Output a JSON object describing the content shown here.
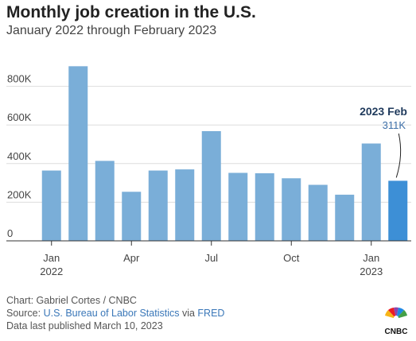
{
  "header": {
    "title": "Monthly job creation in the U.S.",
    "subtitle": "January 2022 through February 2023"
  },
  "chart_data": {
    "type": "bar",
    "categories": [
      "2022-01",
      "2022-02",
      "2022-03",
      "2022-04",
      "2022-05",
      "2022-06",
      "2022-07",
      "2022-08",
      "2022-09",
      "2022-10",
      "2022-11",
      "2022-12",
      "2023-01",
      "2023-02"
    ],
    "values": [
      364000,
      904000,
      414000,
      254000,
      364000,
      370000,
      568000,
      352000,
      350000,
      324000,
      290000,
      239000,
      504000,
      311000
    ],
    "ylim": [
      0,
      1000000
    ],
    "y_ticks": [
      {
        "value": 0,
        "label": "0"
      },
      {
        "value": 200000,
        "label": "200K"
      },
      {
        "value": 400000,
        "label": "400K"
      },
      {
        "value": 600000,
        "label": "600K"
      },
      {
        "value": 800000,
        "label": "800K"
      }
    ],
    "x_ticks": [
      {
        "index": 0,
        "label": "Jan",
        "sublabel": "2022"
      },
      {
        "index": 3,
        "label": "Apr",
        "sublabel": ""
      },
      {
        "index": 6,
        "label": "Jul",
        "sublabel": ""
      },
      {
        "index": 9,
        "label": "Oct",
        "sublabel": ""
      },
      {
        "index": 12,
        "label": "Jan",
        "sublabel": "2023"
      }
    ],
    "annotation": {
      "index": 13,
      "title": "2023 Feb",
      "value_label": "311K"
    },
    "grid": true,
    "colors": {
      "bar": "#7aaed8",
      "highlight": "#3d8fd6",
      "annotation_title": "#1f3a5c",
      "annotation_value": "#3d6fa8",
      "grid": "#dddddd"
    }
  },
  "footer": {
    "credit": "Chart: Gabriel Cortes / CNBC",
    "source_prefix": "Source: ",
    "source_link1": "U.S. Bureau of Labor Statistics",
    "source_mid": " via ",
    "source_link2": "FRED",
    "published": "Data last published March 10, 2023"
  },
  "logo": {
    "icon": "cnbc-peacock-icon",
    "text": "CNBC"
  }
}
